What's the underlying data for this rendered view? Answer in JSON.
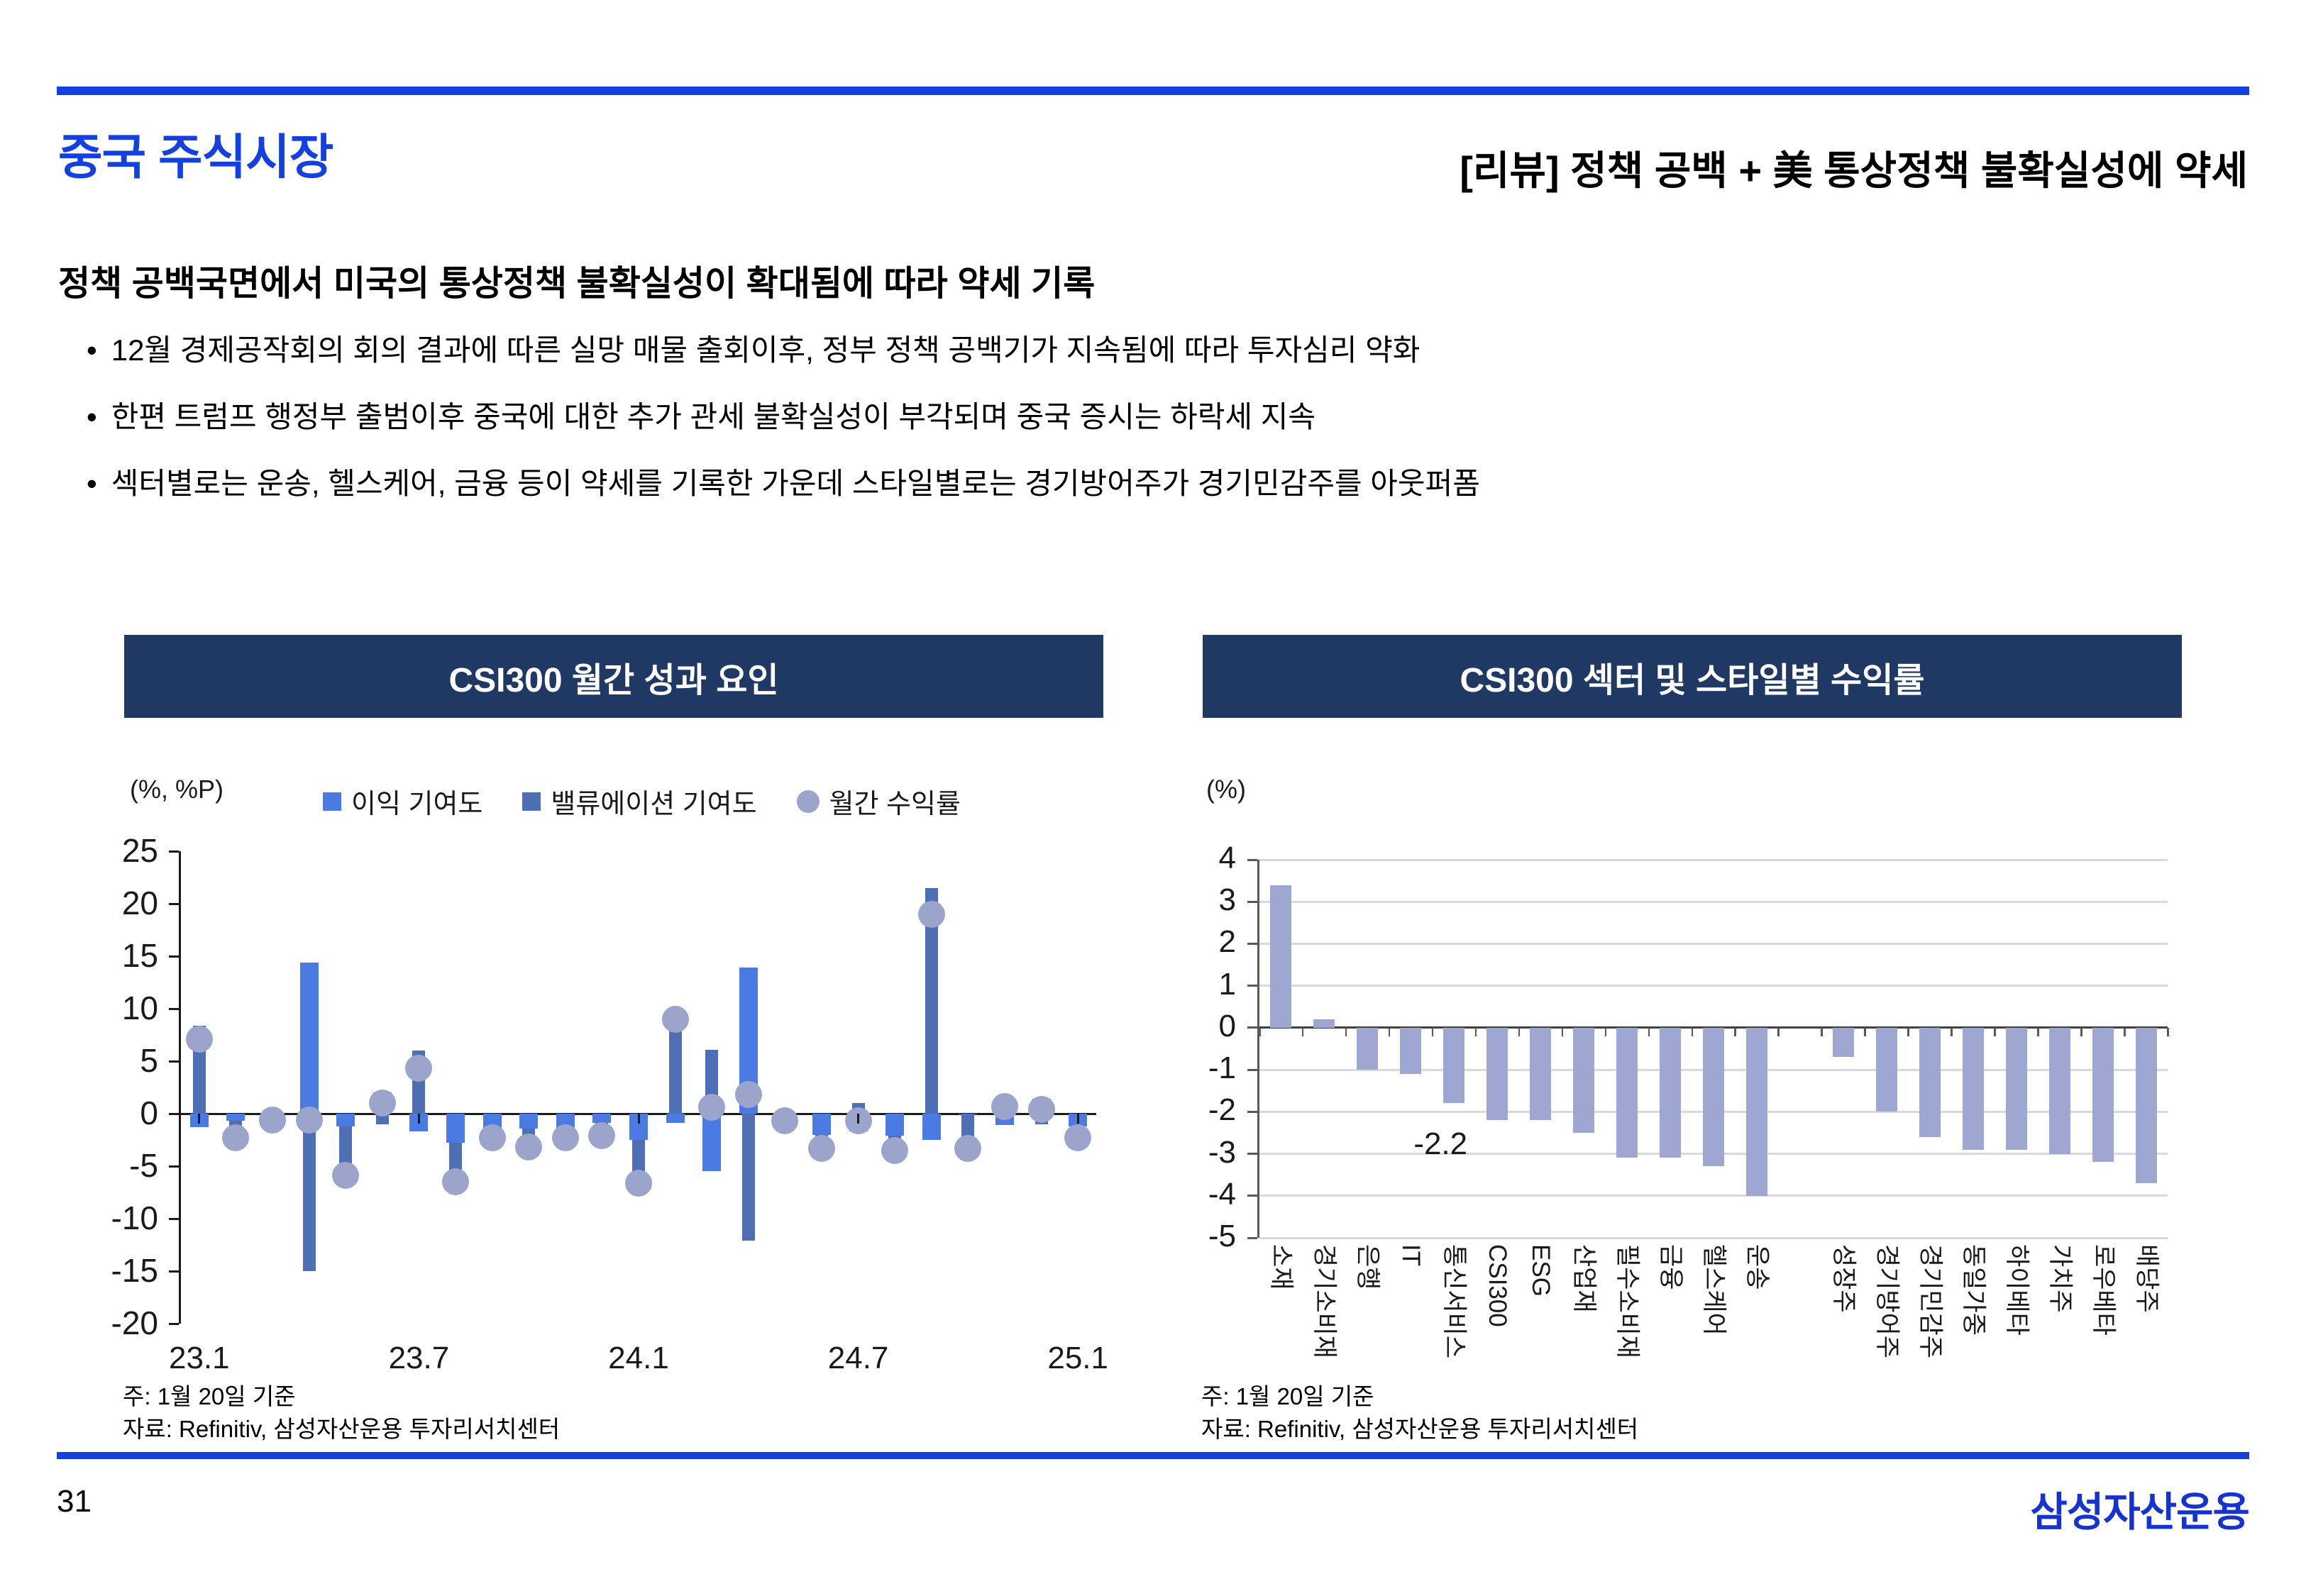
{
  "slide": {
    "title": "중국 주식시장",
    "header_right": "[리뷰] 정책 공백 + 美 통상정책 불확실성에 약세",
    "lead": "정책 공백국면에서 미국의 통상정책 불확실성이 확대됨에 따라 약세 기록",
    "bullets": [
      "12월 경제공작회의 회의 결과에 따른 실망 매물 출회이후, 정부 정책 공백기가 지속됨에 따라 투자심리 약화",
      "한편 트럼프 행정부 출범이후 중국에 대한 추가 관세 불확실성이 부각되며 중국 증시는 하락세 지속",
      "섹터별로는 운송, 헬스케어, 금융 등이 약세를 기록한 가운데 스타일별로는 경기방어주가 경기민감주를 아웃퍼폼"
    ],
    "page_number": "31",
    "logo_text": "삼성자산운용"
  },
  "left_panel": {
    "title": "CSI300 월간 성과 요인",
    "unit": "(%, %P)",
    "note": "주: 1월 20일 기준",
    "source": "자료: Refinitiv, 삼성자산운용 투자리서치센터"
  },
  "right_panel": {
    "title": "CSI300 섹터 및 스타일별 수익률",
    "unit": "(%)",
    "note": "주: 1월 20일 기준",
    "source": "자료: Refinitiv, 삼성자산운용 투자리서치센터"
  },
  "chart_data": [
    {
      "type": "bar",
      "subtype": "stacked-bars-with-point-markers",
      "title": "CSI300 월간 성과 요인",
      "ylabel": "(%, %P)",
      "ylim": [
        -20,
        25
      ],
      "yticks": [
        25,
        20,
        15,
        10,
        5,
        0,
        -5,
        -10,
        -15,
        -20
      ],
      "x_tick_labels": [
        "23.1",
        "23.7",
        "24.1",
        "24.7",
        "25.1"
      ],
      "categories": [
        "23.1",
        "23.2",
        "23.3",
        "23.4",
        "23.5",
        "23.6",
        "23.7",
        "23.8",
        "23.9",
        "23.10",
        "23.11",
        "23.12",
        "24.1",
        "24.2",
        "24.3",
        "24.4",
        "24.5",
        "24.6",
        "24.7",
        "24.8",
        "24.9",
        "24.10",
        "24.11",
        "24.12",
        "25.1"
      ],
      "series": [
        {
          "name": "이익 기여도",
          "type": "bar",
          "values": [
            -1.3,
            -0.7,
            0.3,
            14.4,
            -1.2,
            2.0,
            -1.7,
            -2.8,
            -2.0,
            -1.4,
            -2.0,
            -0.9,
            -2.5,
            -0.9,
            -5.5,
            13.9,
            -1.2,
            -2.0,
            -1.7,
            -2.1,
            -2.5,
            -0.1,
            -1.1,
            1.4,
            -1.2
          ]
        },
        {
          "name": "밸류에이션 기여도",
          "type": "bar",
          "values": [
            8.4,
            -1.6,
            -0.9,
            -15.0,
            -4.7,
            -1.0,
            6.0,
            -3.7,
            -0.3,
            -1.8,
            -0.3,
            -1.2,
            -4.1,
            9.9,
            6.1,
            -12.1,
            0.5,
            -1.3,
            1.0,
            -1.4,
            21.5,
            -3.2,
            1.8,
            -1.0,
            -1.1
          ]
        },
        {
          "name": "월간 수익률",
          "type": "point",
          "values": [
            7.1,
            -2.3,
            -0.6,
            -0.6,
            -5.9,
            1.0,
            4.3,
            -6.5,
            -2.3,
            -3.2,
            -2.3,
            -2.1,
            -6.6,
            9.0,
            0.6,
            1.8,
            -0.7,
            -3.3,
            -0.7,
            -3.5,
            19.0,
            -3.3,
            0.7,
            0.4,
            -2.3
          ]
        }
      ],
      "legend_position": "top",
      "grid": false
    },
    {
      "type": "bar",
      "title": "CSI300 섹터 및 스타일별 수익률",
      "ylabel": "(%)",
      "ylim": [
        -5,
        4
      ],
      "yticks": [
        4,
        3,
        2,
        1,
        0,
        -1,
        -2,
        -3,
        -4,
        -5
      ],
      "categories": [
        "소재",
        "경기소비재",
        "은행",
        "IT",
        "통신서비스",
        "CSI300",
        "ESG",
        "산업재",
        "필수소비재",
        "금융",
        "헬스케어",
        "운송",
        "성장주",
        "경기방어주",
        "경기민감주",
        "동일가중",
        "하이베타",
        "가치주",
        "로우베타",
        "배당주"
      ],
      "values": [
        3.4,
        0.2,
        -1.0,
        -1.1,
        -1.8,
        -2.2,
        -2.2,
        -2.5,
        -3.1,
        -3.1,
        -3.3,
        -4.0,
        -0.7,
        -2.0,
        -2.6,
        -2.9,
        -2.9,
        -3.0,
        -3.2,
        -3.7
      ],
      "gap_after_index": 11,
      "data_label": {
        "category": "CSI300",
        "text": "-2.2"
      },
      "grid": true
    }
  ],
  "colors": {
    "accent_blue": "#1540e0",
    "navy_header": "#1f3864",
    "earnings_bar": "#4b7be2",
    "valuation_bar": "#4e6fb3",
    "return_marker": "#9ba4ca",
    "sector_bar": "#9da7d1",
    "gridline": "#d9d9d9",
    "logo_blue": "#1733cf"
  }
}
